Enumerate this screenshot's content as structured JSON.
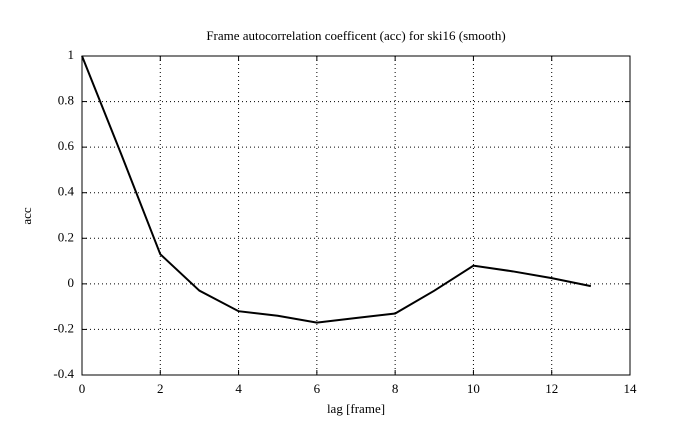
{
  "chart_data": {
    "type": "line",
    "title": "Frame autocorrelation coefficent (acc) for ski16 (smooth)",
    "x_label": "lag [frame]",
    "y_label": "acc",
    "x": [
      0,
      1,
      2,
      3,
      4,
      5,
      6,
      7,
      8,
      9,
      10,
      11,
      12,
      13
    ],
    "series": [
      {
        "name": "acc",
        "color": "#000000",
        "values": [
          1.0,
          0.57,
          0.13,
          -0.03,
          -0.12,
          -0.14,
          -0.17,
          -0.15,
          -0.13,
          -0.03,
          0.08,
          0.055,
          0.025,
          -0.01
        ]
      }
    ],
    "xlim": [
      0,
      14
    ],
    "xticks": [
      0,
      2,
      4,
      6,
      8,
      10,
      12,
      14
    ],
    "ylim": [
      -0.4,
      1
    ],
    "yticks": [
      -0.4,
      -0.2,
      0,
      0.2,
      0.4,
      0.6,
      0.8,
      1
    ],
    "grid": true
  }
}
